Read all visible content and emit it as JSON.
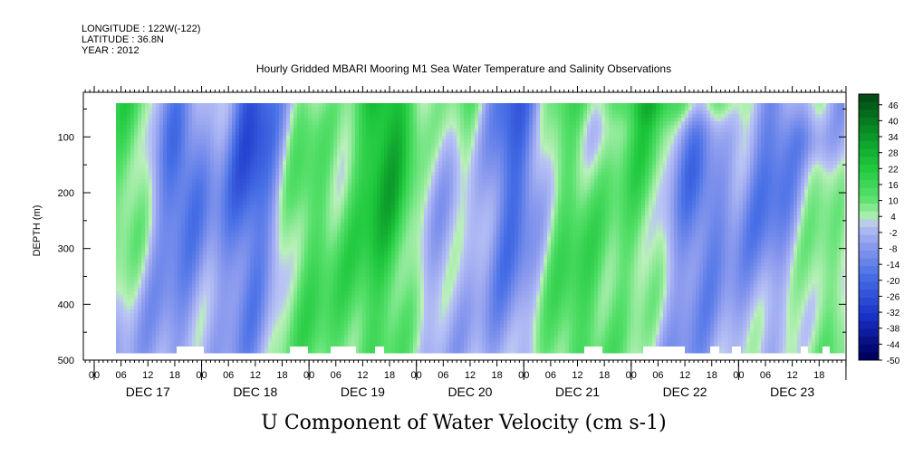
{
  "header": {
    "longitude": "LONGITUDE : 122W(-122)",
    "latitude": "LATITUDE : 36.8N",
    "year": "YEAR : 2012"
  },
  "chart_data": {
    "type": "heatmap",
    "title": "Hourly Gridded MBARI Mooring M1 Sea Water Temperature and Salinity Observations",
    "xlabel": "U Component of Water Velocity (cm s-1)",
    "ylabel": "DEPTH (m)",
    "y_ticks": [
      100,
      200,
      300,
      400,
      500
    ],
    "ylim": [
      500,
      20
    ],
    "x_hour_ticks": [
      "00",
      "06",
      "12",
      "18",
      "00",
      "06",
      "12",
      "18",
      "00",
      "06",
      "12",
      "18",
      "00",
      "06",
      "12",
      "18",
      "00",
      "06",
      "12",
      "18",
      "00",
      "06",
      "12",
      "18",
      "00",
      "06",
      "12",
      "18"
    ],
    "x_day_labels": [
      "DEC 17",
      "DEC 18",
      "DEC 19",
      "DEC 20",
      "DEC 21",
      "DEC 22",
      "DEC 23"
    ],
    "colorbar": {
      "labels": [
        "46",
        "40",
        "34",
        "28",
        "22",
        "16",
        "10",
        "4",
        "-2",
        "-8",
        "-14",
        "-20",
        "-26",
        "-32",
        "-38",
        "-44",
        "-50"
      ],
      "min": -50,
      "max": 50,
      "step": 3
    },
    "colors": {
      "strong_negative": "#000066",
      "negative": "#3c5ad2",
      "weak_negative": "#aab4f0",
      "weak_positive": "#aaf0aa",
      "positive": "#32d24b",
      "strong_positive": "#004614"
    }
  }
}
